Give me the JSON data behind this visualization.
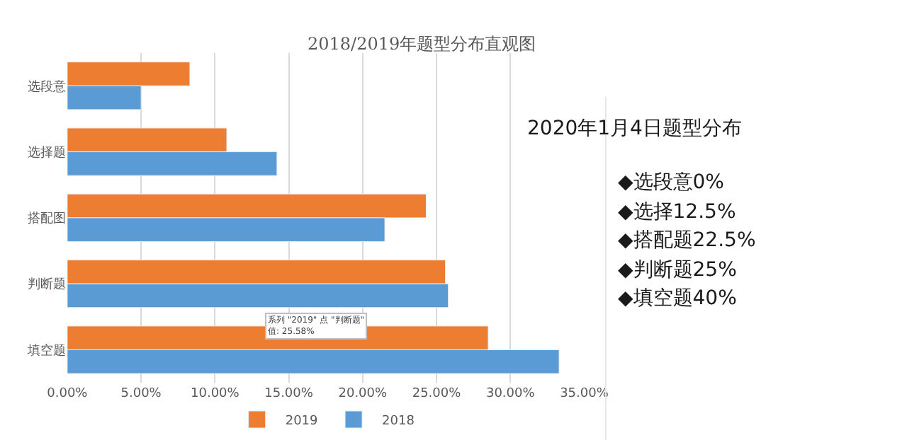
{
  "chart_data": [
    {
      "type": "bar",
      "orientation": "horizontal",
      "title": "2018/2019年题型分布直观图",
      "categories": [
        "选段意",
        "选择题",
        "搭配图",
        "判断题",
        "填空题"
      ],
      "series": [
        {
          "name": "2019",
          "color": "#ed7d31",
          "values": [
            8.3,
            10.8,
            24.3,
            25.6,
            28.5
          ]
        },
        {
          "name": "2018",
          "color": "#5b9bd5",
          "values": [
            5.0,
            14.2,
            21.5,
            25.8,
            33.3
          ]
        }
      ],
      "xlim": [
        0,
        35
      ],
      "xticks": [
        {
          "value": 0,
          "label": "0.00%"
        },
        {
          "value": 5,
          "label": "5.00%"
        },
        {
          "value": 10,
          "label": "10.00%"
        },
        {
          "value": 15,
          "label": "15.00%"
        },
        {
          "value": 20,
          "label": "20.00%"
        },
        {
          "value": 25,
          "label": "25.00%"
        },
        {
          "value": 30,
          "label": "30.00%"
        },
        {
          "value": 35,
          "label": "35.00%"
        }
      ],
      "grid": "x",
      "legend": "bottom",
      "annotations": [
        "系列 \"2019\" 点 \"判断题\"\n值: 25.58%"
      ]
    },
    {
      "type": "other",
      "title": "2020年1月4日题型分布",
      "annotations": [
        "◆选段意0%",
        "◆选择12.5%",
        "◆搭配题22.5%",
        "◆判断题25%",
        "◆填空题40%"
      ]
    }
  ]
}
